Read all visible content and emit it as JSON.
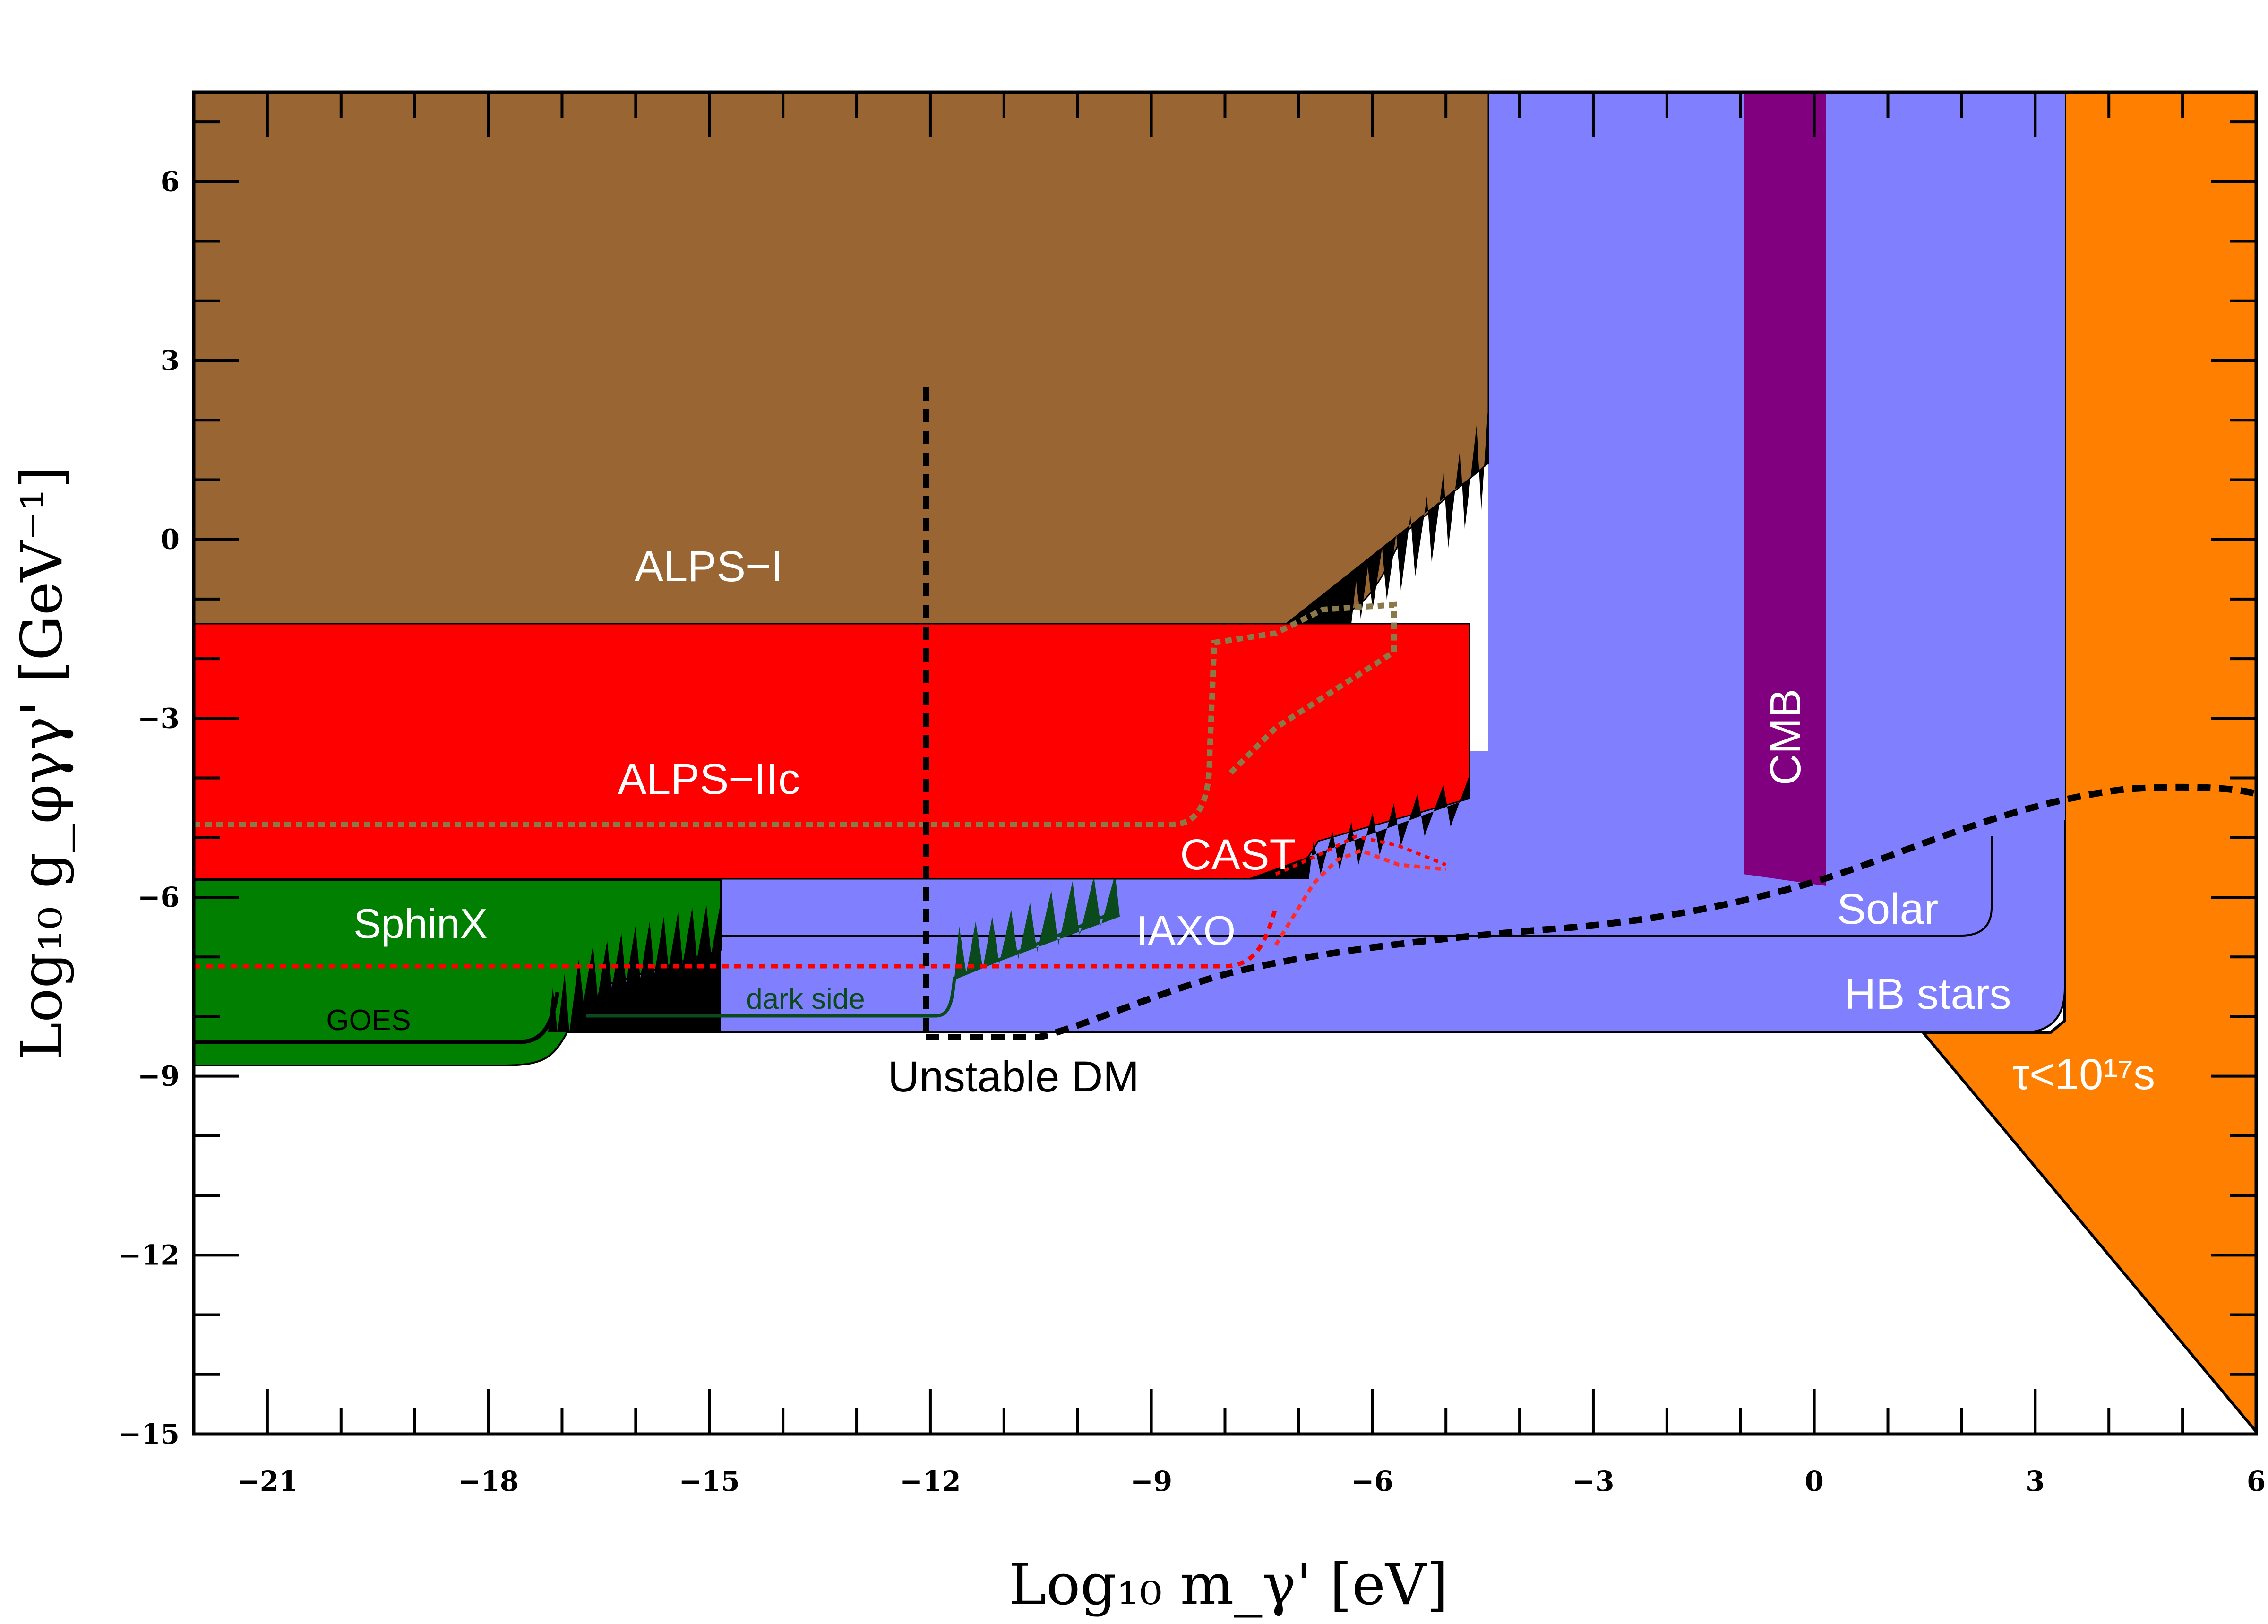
{
  "chart_data": {
    "type": "area",
    "xlabel": "Log₁₀ m_γ' [eV]",
    "ylabel": "Log₁₀ g_φγγ' [GeV⁻¹]",
    "xlim": [
      -22,
      6
    ],
    "ylim": [
      -15,
      7.5
    ],
    "x_ticks": [
      -21,
      -18,
      -15,
      -12,
      -9,
      -6,
      -3,
      0,
      3,
      6
    ],
    "x_tick_labels": [
      "−21",
      "−18",
      "−15",
      "−12",
      "−9",
      "−6",
      "−3",
      "0",
      "3",
      "6"
    ],
    "y_ticks": [
      -15,
      -12,
      -9,
      -6,
      -3,
      0,
      3,
      6
    ],
    "y_tick_labels": [
      "−15",
      "−12",
      "−9",
      "−6",
      "−3",
      "0",
      "3",
      "6"
    ],
    "grid": false,
    "colors": {
      "alps_i": "#996633",
      "alps_iic": "#ff0000",
      "sphinx": "#007f00",
      "astro": "#8080ff",
      "cmb": "#800080",
      "lifetime": "#ff8000",
      "unstable_dm": "#000000",
      "dark_side": "#0b4a1c"
    },
    "regions": [
      {
        "name": "ALPS−I",
        "x_start": -22,
        "x_end": -4.6,
        "floor": -1.4,
        "label_at": [
          -14.8,
          -0.5
        ]
      },
      {
        "name": "ALPS−IIc",
        "x_start": -22,
        "x_end": -4.7,
        "floor": -5.6,
        "label_at": [
          -14.8,
          -4.0
        ]
      },
      {
        "name": "SphinX",
        "x_start": -22,
        "x_end": -14.9,
        "floor": -8.8,
        "label_at": [
          -17.3,
          -6.5
        ]
      },
      {
        "name": "HB stars",
        "x_start": -16.4,
        "x_end": 3.5,
        "floor": -8.2,
        "label_at": [
          1.5,
          -7.8
        ]
      },
      {
        "name": "Solar",
        "x_start": -12,
        "x_end": 2.5,
        "floor": -6.6,
        "label_at": [
          1.0,
          -6.3
        ]
      },
      {
        "name": "CMB",
        "x_start": -1.0,
        "x_end": 0.2,
        "floor": -5.8,
        "label_at": [
          -0.35,
          -3.2
        ]
      },
      {
        "name": "τ<10¹⁷s",
        "x_start": 3.5,
        "x_end": 6.0,
        "floor": -15,
        "label_at": [
          4.4,
          -8.9
        ]
      }
    ],
    "labels": {
      "alps_i": "ALPS−I",
      "alps_iic": "ALPS−IIc",
      "sphinx": "SphinX",
      "goes": "GOES",
      "dark_side": "dark side",
      "cast": "CAST",
      "iaxo": "IAXO",
      "unstable_dm": "Unstable DM",
      "cmb": "CMB",
      "solar": "Solar",
      "hb_stars": "HB stars",
      "lifetime": "τ<10¹⁷s"
    },
    "unstable_dm_curve": {
      "x": [
        -12,
        -10.9,
        -10,
        -9,
        -8,
        -7,
        -6,
        -5,
        -4,
        -3,
        -2,
        -1,
        0,
        1,
        2,
        3,
        4,
        5,
        6
      ],
      "y": [
        -8.4,
        -8.3,
        -8.1,
        -7.7,
        -7.4,
        -7.2,
        -7.0,
        -6.9,
        -6.8,
        -6.6,
        -6.4,
        -6.2,
        -5.8,
        -5.3,
        -4.8,
        -4.4,
        -4.3,
        -4.2,
        -4.3
      ]
    },
    "unstable_dm_vertical_x": -12,
    "unstable_dm_vertical_top": 2.5
  }
}
